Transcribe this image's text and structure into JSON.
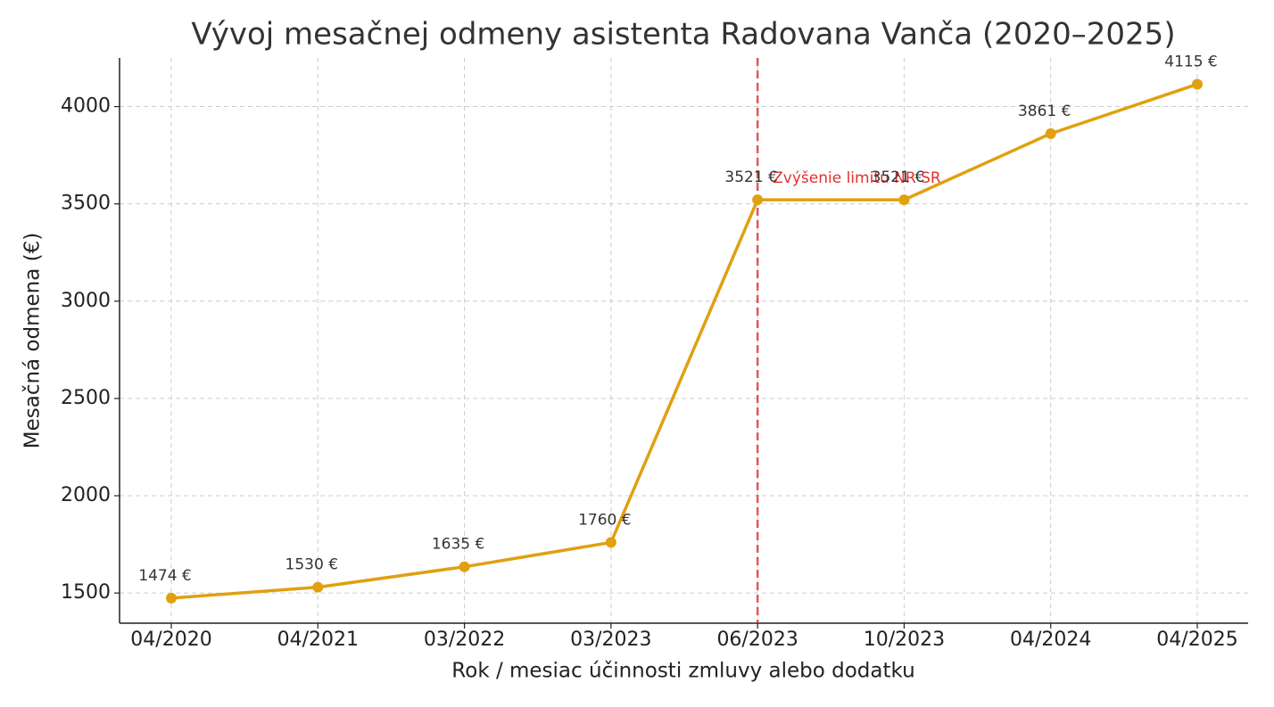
{
  "chart_data": {
    "type": "line",
    "title": "Vývoj mesačnej odmeny asistenta Radovana Vanča (2020–2025)",
    "xlabel": "Rok / mesiac účinnosti zmluvy alebo dodatku",
    "ylabel": "Mesačná odmena (€)",
    "categories": [
      "04/2020",
      "04/2021",
      "03/2022",
      "03/2023",
      "06/2023",
      "10/2023",
      "04/2024",
      "04/2025"
    ],
    "values": [
      1474,
      1530,
      1635,
      1760,
      3521,
      3521,
      3861,
      4115
    ],
    "value_labels": [
      "1474 €",
      "1530 €",
      "1635 €",
      "1760 €",
      "3521 €",
      "3521 €",
      "3861 €",
      "4115 €"
    ],
    "color": "#e0a010",
    "ylim": [
      1345,
      4250
    ],
    "yticks": [
      1500,
      2000,
      2500,
      3000,
      3500,
      4000
    ],
    "grid": true,
    "annotations": [
      {
        "x": "06/2023",
        "text": "Zvýšenie limitu NR SR",
        "color": "#e03030"
      }
    ]
  }
}
